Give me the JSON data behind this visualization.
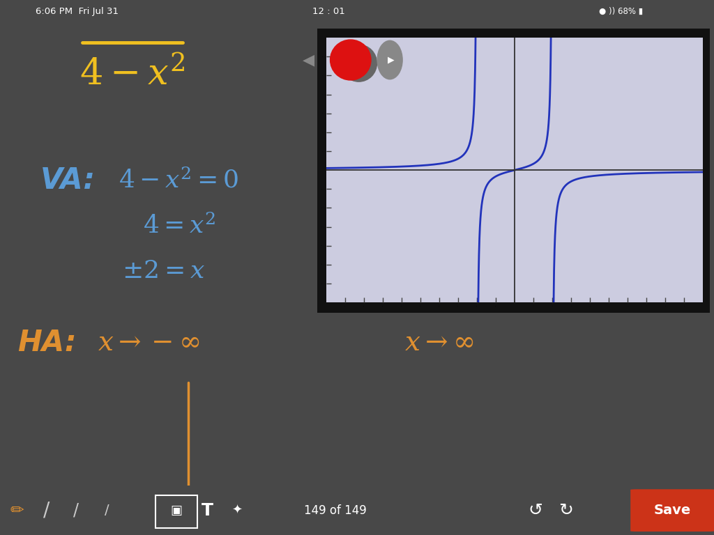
{
  "bg_color": "#484848",
  "toolbar_color": "#252525",
  "status_bar_color": "#6090b8",
  "yellow_color": "#f0c020",
  "blue_color": "#5b9bd5",
  "orange_color": "#e09030",
  "graph_blue": "#2233bb",
  "graph_bg": "#cccce0",
  "graph_frame_color": "#1a1a1a",
  "save_btn_color": "#cc3318",
  "page_text": "149 of 149"
}
